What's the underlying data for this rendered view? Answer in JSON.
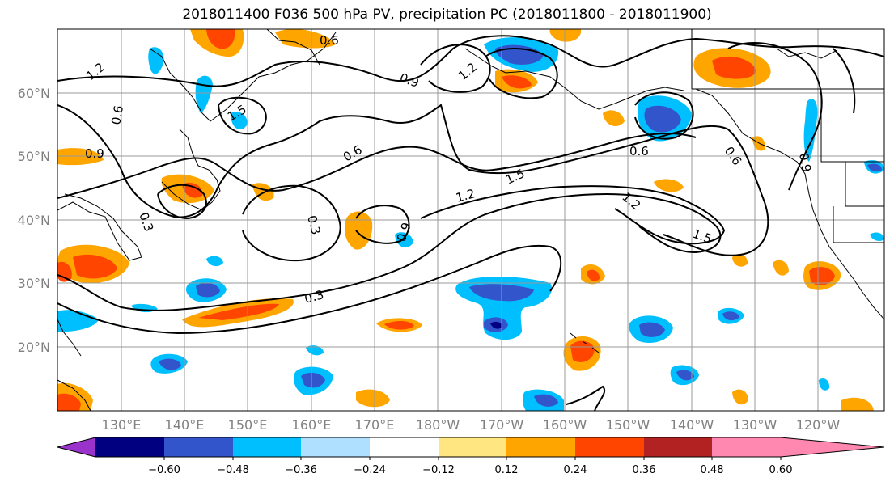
{
  "title": "2018011400 F036 500 hPa PV, precipitation PC (2018011800 - 2018011900)",
  "lat_labels": [
    "60°N",
    "50°N",
    "40°N",
    "30°N",
    "20°N"
  ],
  "lon_labels": [
    "130°E",
    "140°E",
    "150°E",
    "160°E",
    "170°E",
    "180°W",
    "170°W",
    "160°W",
    "150°W",
    "140°W",
    "130°W",
    "120°W"
  ],
  "contour_labels": [
    "0.6",
    "1.2",
    "0.9",
    "1.5",
    "0.6",
    "0.9",
    "0.3",
    "0.6",
    "1.2",
    "1.5",
    "0.3",
    "0.9",
    "1.2",
    "1.5",
    "0.6",
    "0.6",
    "0.9",
    "1.2",
    "0.3"
  ],
  "colorbar": {
    "tick_labels": [
      "−0.60",
      "−0.48",
      "−0.36",
      "−0.24",
      "−0.12",
      "0.12",
      "0.24",
      "0.36",
      "0.48",
      "0.60"
    ],
    "colors": [
      "#9933cc",
      "#000080",
      "#3355cc",
      "#00bfff",
      "#b0e0ff",
      "#ffffff",
      "#ffe680",
      "#ffa500",
      "#ff4500",
      "#b22222",
      "#ff88b0"
    ]
  }
}
